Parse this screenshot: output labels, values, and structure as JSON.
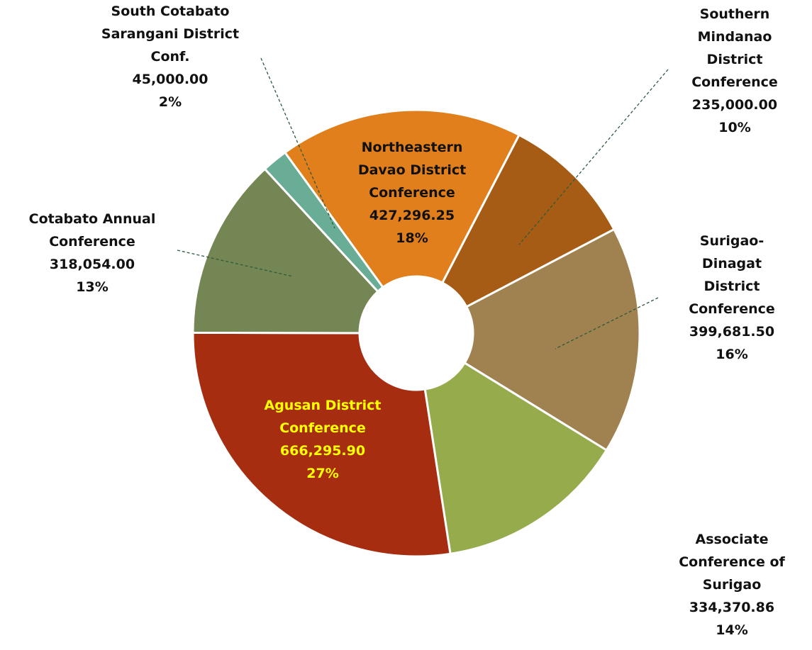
{
  "chart_data": {
    "type": "donut",
    "categories": [
      "Northeastern Davao District Conference",
      "Southern Mindanao District Conference",
      "Surigao-Dinagat District Conference",
      "Associate Conference of Surigao",
      "Agusan District Conference",
      "Cotabato Annual Conference",
      "South Cotabato Sarangani District Conf."
    ],
    "values": [
      427296.25,
      235000.0,
      399681.5,
      334370.86,
      666295.9,
      318054.0,
      45000.0
    ],
    "value_labels": [
      "427,296.25",
      "235,000.00",
      "399,681.50",
      "334,370.86",
      "666,295.90",
      "318,054.00",
      "45,000.00"
    ],
    "percent_labels": [
      "18%",
      "10%",
      "16%",
      "14%",
      "27%",
      "13%",
      "2%"
    ],
    "colors": [
      "#e07f1b",
      "#a65c14",
      "#a08150",
      "#95ab4c",
      "#a62d10",
      "#748653",
      "#6aad96"
    ]
  }
}
